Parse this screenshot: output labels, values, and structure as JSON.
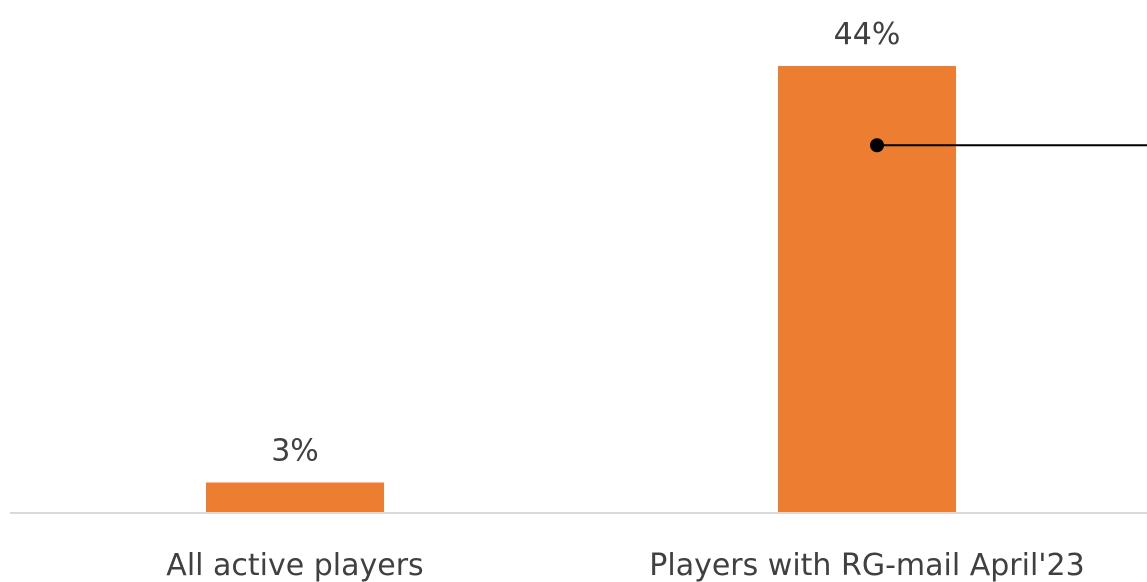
{
  "chart_data": {
    "type": "bar",
    "categories": [
      "All active players",
      "Players with RG-mail April'23"
    ],
    "values": [
      3,
      44
    ],
    "data_labels": [
      "3%",
      "44%"
    ],
    "title": "",
    "xlabel": "",
    "ylabel": "",
    "ylim": [
      0,
      44
    ],
    "grid": false,
    "legend": "none",
    "annotation": {
      "type": "callout-line",
      "category_index": 1,
      "y_value": 36.2
    }
  },
  "colors": {
    "bar": "#ED7D31",
    "axis": "#D9D9D9",
    "text": "#404040",
    "annotation": "#000000"
  }
}
